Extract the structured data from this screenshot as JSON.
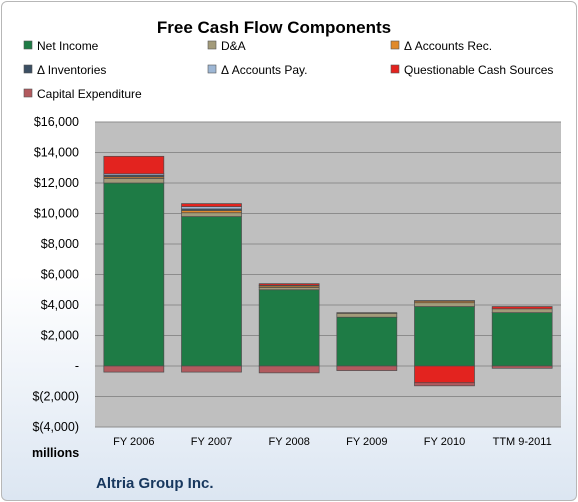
{
  "chart_data": {
    "type": "bar",
    "stacked": true,
    "title": "Free Cash Flow Components",
    "ylabel": "",
    "xlabel": "",
    "unit_label": "millions",
    "footer": "Altria Group Inc.",
    "ylim": [
      -4000,
      16000
    ],
    "yticks": [
      16000,
      14000,
      12000,
      10000,
      8000,
      6000,
      4000,
      2000,
      0,
      -2000,
      -4000
    ],
    "ytick_labels": [
      "$16,000",
      "$14,000",
      "$12,000",
      "$10,000",
      "$8,000",
      "$6,000",
      "$4,000",
      "$2,000",
      "-",
      "$(2,000)",
      "$(4,000)"
    ],
    "grid": true,
    "legend_position": "top",
    "categories": [
      "FY 2006",
      "FY 2007",
      "FY 2008",
      "FY 2009",
      "FY 2010",
      "TTM 9-2011"
    ],
    "series": [
      {
        "name": "Net Income",
        "color": "#1e7b45",
        "values": [
          12000,
          9800,
          5000,
          3200,
          3900,
          3500
        ]
      },
      {
        "name": "D&A",
        "color": "#a39b7a",
        "values": [
          300,
          250,
          150,
          250,
          250,
          250
        ]
      },
      {
        "name": "Δ Accounts Rec.",
        "color": "#e08a2c",
        "values": [
          100,
          150,
          100,
          50,
          100,
          0
        ]
      },
      {
        "name": "Δ Inventories",
        "color": "#3b4f63",
        "values": [
          100,
          100,
          50,
          0,
          0,
          0
        ]
      },
      {
        "name": "Δ Accounts Pay.",
        "color": "#9eb7d5",
        "values": [
          100,
          150,
          0,
          0,
          50,
          0
        ]
      },
      {
        "name": "Questionable Cash Sources",
        "color": "#e3231f",
        "values": [
          1150,
          200,
          100,
          0,
          -1100,
          150
        ]
      },
      {
        "name": "Capital Expenditure",
        "color": "#b25a5e",
        "values": [
          -400,
          -400,
          -450,
          -300,
          -200,
          -150
        ]
      }
    ]
  }
}
